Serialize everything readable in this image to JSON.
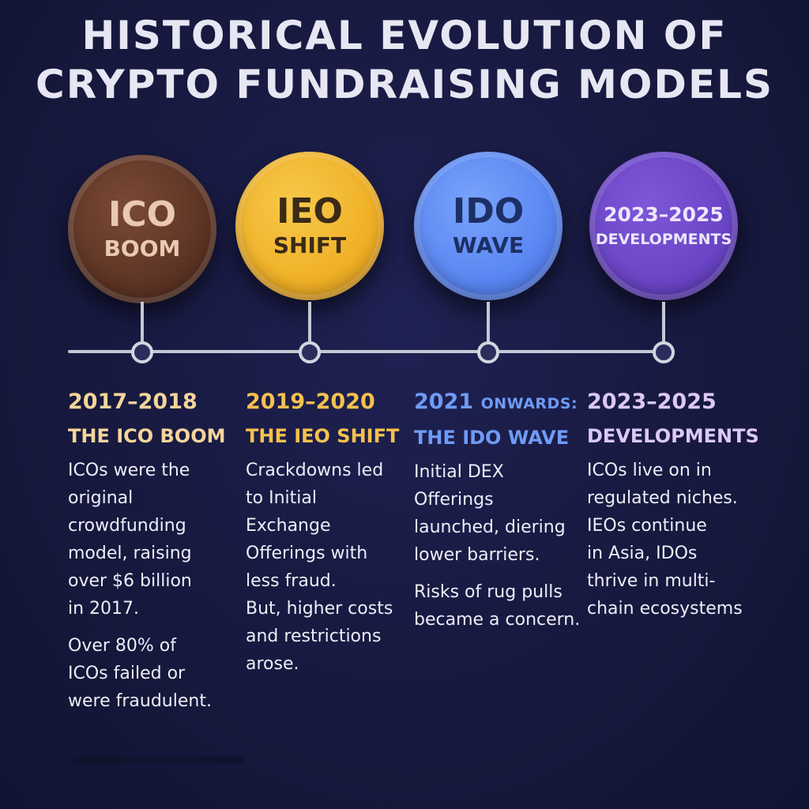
{
  "title": {
    "line1": "HISTORICAL EVOLUTION OF",
    "line2": "CRYPTO FUNDRAISING MODELS"
  },
  "colors": {
    "background": "#181a42",
    "ico": "#5d3424",
    "ieo": "#f0b027",
    "ido": "#5a86f2",
    "developments": "#6a45c6"
  },
  "milestones": [
    {
      "coin_top": "ICO",
      "coin_bottom": "BOOM",
      "period": "2017–2018",
      "heading": "THE ICO BOOM",
      "paragraphs": [
        [
          "ICOs were the",
          "original",
          "crowdfunding",
          "model, raising",
          "over $6 billion",
          "in 2017."
        ],
        [
          "Over 80% of",
          "ICOs failed or",
          "were fraudulent."
        ]
      ]
    },
    {
      "coin_top": "IEO",
      "coin_bottom": "SHIFT",
      "period": "2019–2020",
      "heading": "THE IEO SHIFT",
      "paragraphs": [
        [
          "Crackdowns led",
          "to Initial",
          "Exchange",
          "Offerings with",
          "less fraud.",
          "But, higher costs",
          "and restrictions",
          "arose."
        ]
      ]
    },
    {
      "coin_top": "IDO",
      "coin_bottom": "WAVE",
      "period": "2021",
      "period_suffix": "ONWARDS:",
      "heading": "THE IDO WAVE",
      "paragraphs": [
        [
          "Initial DEX",
          "Offerings",
          "launched, diering",
          "lower barriers."
        ],
        [
          "Risks of rug pulls",
          "became a concern."
        ]
      ]
    },
    {
      "coin_top": "2023–2025",
      "coin_bottom": "DEVELOPMENTS",
      "period": "2023–2025",
      "heading": "DEVELOPMENTS",
      "paragraphs": [
        [
          "ICOs live on in",
          "regulated niches.",
          "IEOs continue",
          "in Asia, IDOs",
          "thrive in multi-",
          "chain ecosystems"
        ]
      ]
    }
  ]
}
